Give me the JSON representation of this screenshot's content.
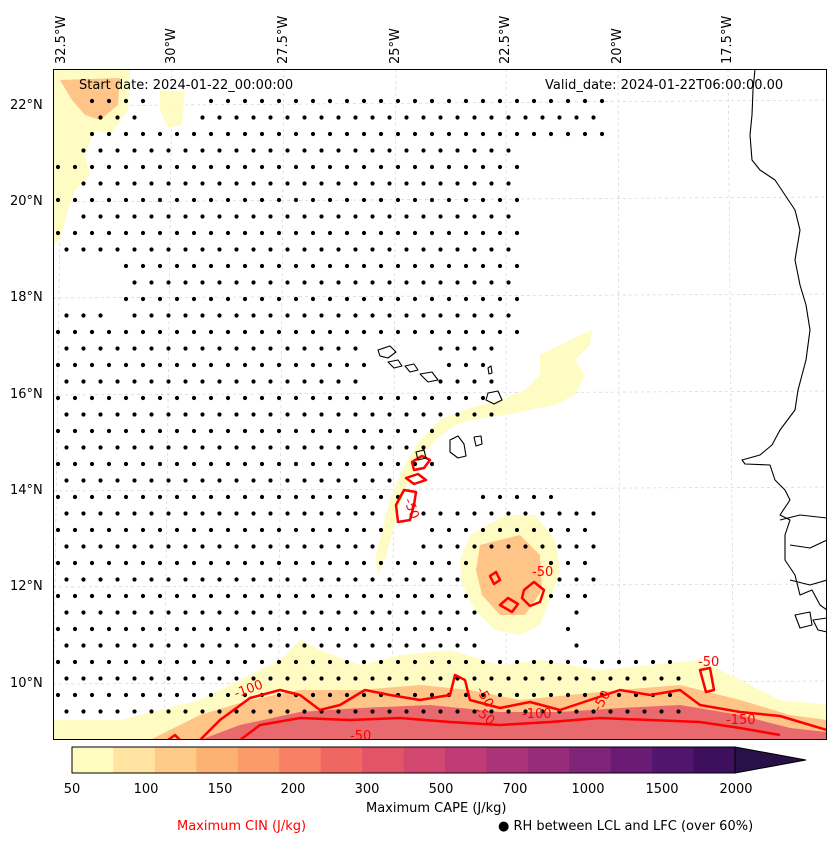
{
  "map": {
    "start_date": "Start date: 2024-01-22_00:00:00",
    "valid_date": "Valid_date: 2024-01-22T06:00:00.00",
    "lon_labels": [
      "32.5°W",
      "30°W",
      "27.5°W",
      "25°W",
      "22.5°W",
      "20°W",
      "17.5°W"
    ],
    "lat_labels": [
      "22°N",
      "20°N",
      "18°N",
      "16°N",
      "14°N",
      "12°N",
      "10°N"
    ],
    "contour_labels": [
      "-50",
      "-50",
      "-50",
      "-100",
      "-50",
      "-50",
      "-100",
      "-50",
      "-50",
      "-150"
    ]
  },
  "colorbar": {
    "title": "Maximum CAPE (J/kg)",
    "ticks": [
      "50",
      "100",
      "150",
      "200",
      "300",
      "500",
      "700",
      "1000",
      "1500",
      "2000"
    ],
    "colors": [
      "#fffcc0",
      "#fee4a0",
      "#fdca87",
      "#fdb274",
      "#fb9a6a",
      "#f88064",
      "#f06762",
      "#e45468",
      "#d24770",
      "#bf3c76",
      "#aa3478",
      "#962c7a",
      "#802479",
      "#6a1c75",
      "#52156e",
      "#3d0f5c",
      "#271148"
    ]
  },
  "legend": {
    "cin_label": "Maximum CIN (J/kg)",
    "rh_label": "RH between LCL and LFC (over 60%)",
    "cin_color": "#ff0000"
  }
}
